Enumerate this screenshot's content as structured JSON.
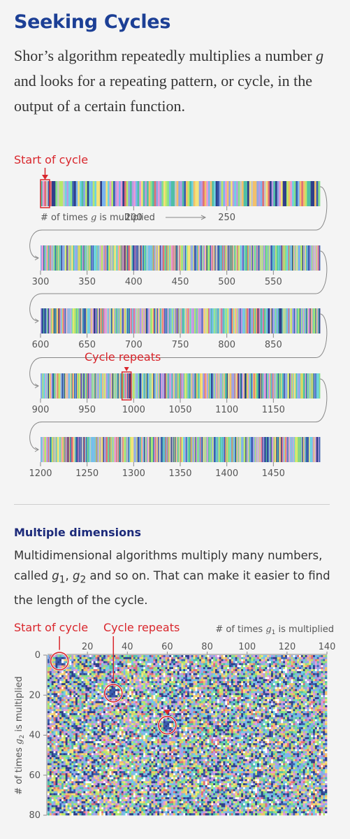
{
  "title": "Seeking Cycles",
  "intro": {
    "part1": "Shor’s algorithm repeatedly multiplies a number ",
    "var_g": "g",
    "part2": " and looks for a repeating pattern, or cycle, in the output of a certain function."
  },
  "section2": {
    "heading": "Multiple dimensions",
    "text1": "Multidimensional algorithms multiply many numbers, called ",
    "g1": "g",
    "sub1": "1",
    "sep": ", ",
    "g2": "g",
    "sub2": "2",
    "text2": " and so on. That can make it easier to find the length of the cycle."
  },
  "colors": {
    "title": "#1c3f95",
    "accent_red": "#d9262c",
    "palette": [
      "#6fd2e0",
      "#86e08a",
      "#b7e86a",
      "#f2c06b",
      "#e79ad8",
      "#b99ae3",
      "#8fa6e6",
      "#e06f77",
      "#4fbfa6",
      "#3a5fb0",
      "#f4e27a",
      "#7cb6ee",
      "#2f3f8a",
      "#c6c6c6"
    ]
  },
  "chart_data": [
    {
      "type": "heatmap",
      "description_label": "1D strip",
      "x_axis_label_prefix": "# of times ",
      "x_axis_label_var": "g",
      "x_axis_label_suffix": " is multiplied",
      "rows": [
        {
          "start": 150,
          "end": 300,
          "tick_labels": [
            "200",
            "250"
          ]
        },
        {
          "start": 300,
          "end": 600,
          "tick_labels": [
            "300",
            "350",
            "400",
            "450",
            "500",
            "550"
          ]
        },
        {
          "start": 600,
          "end": 900,
          "tick_labels": [
            "600",
            "650",
            "700",
            "750",
            "800",
            "850"
          ]
        },
        {
          "start": 900,
          "end": 1200,
          "tick_labels": [
            "900",
            "950",
            "1000",
            "1050",
            "1100",
            "1150"
          ]
        },
        {
          "start": 1200,
          "end": 1500,
          "tick_labels": [
            "1200",
            "1250",
            "1300",
            "1350",
            "1400",
            "1450"
          ]
        }
      ],
      "cycle_start_label": "Start of cycle",
      "cycle_repeat_label": "Cycle repeats",
      "cycle_start": 150,
      "cycle_repeat": 989,
      "cycle_length": 839
    },
    {
      "type": "heatmap",
      "description_label": "2D grid",
      "xlabel_prefix": "# of times ",
      "xlabel_var": "g",
      "xlabel_sub": "1",
      "xlabel_suffix": " is multiplied",
      "ylabel_prefix": "# of times ",
      "ylabel_var": "g",
      "ylabel_sub": "2",
      "ylabel_suffix": " is multiplied",
      "xlim": [
        0,
        140
      ],
      "ylim": [
        0,
        80
      ],
      "x_ticks": [
        "20",
        "40",
        "60",
        "80",
        "100",
        "120",
        "140"
      ],
      "y_ticks": [
        "0",
        "20",
        "40",
        "60",
        "80"
      ],
      "cycle_start_label": "Start of cycle",
      "cycle_repeat_label": "Cycle repeats",
      "highlights": [
        {
          "x": 3,
          "y": 0
        },
        {
          "x": 30,
          "y": 16
        },
        {
          "x": 57,
          "y": 32
        }
      ]
    }
  ]
}
